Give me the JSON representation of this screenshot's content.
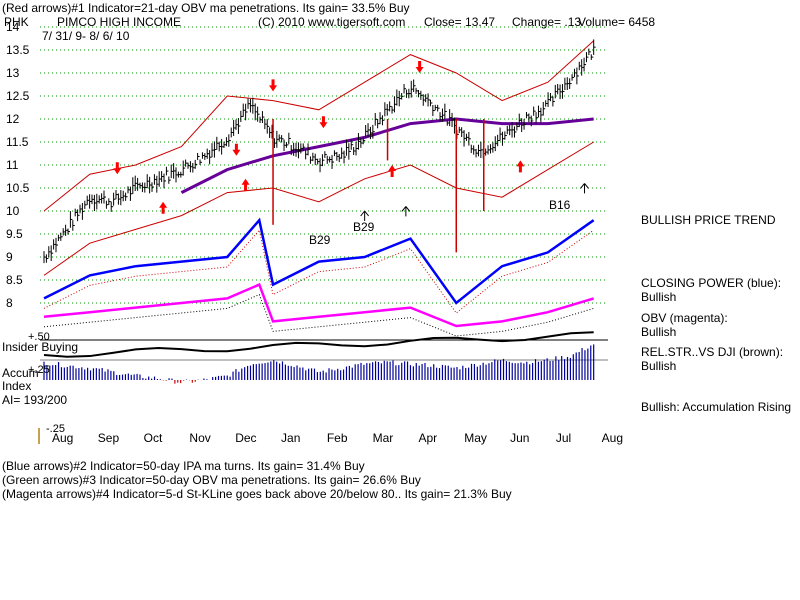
{
  "header": {
    "line1": "(Red arrows)#1 Indicator=21-day OBV ma penetrations. Its gain= 33.5% Buy",
    "ticker": "PHK",
    "company": "PIMCO HIGH INCOME",
    "copyright": "(C) 2010 www.tigersoft.com",
    "close": "Close=  13.47",
    "change": "Change= .13",
    "volume": "Volume= 6458",
    "date_range": "7/ 31/ 9-  8/ 6/ 10"
  },
  "right_panel": {
    "trend": "BULLISH PRICE TREND",
    "closing_power_label": "CLOSING POWER (blue):",
    "closing_power_value": "Bullish",
    "obv_label": "OBV (magenta):",
    "obv_value": "Bullish",
    "relstr_label": "REL.STR..VS DJI (brown):",
    "relstr_value": "Bullish",
    "accum_status": "Bullish: Accumulation Rising"
  },
  "lower_panel": {
    "plus50": "+.50",
    "insider_label": "Insider Buying",
    "plus25": "+.25",
    "accum_label_1": "Accum",
    "accum_label_2": "Index",
    "ai_label": "AI= 193/200",
    "minus25": "-.25"
  },
  "footer": {
    "line1": "(Blue arrows)#2 Indicator=50-day IPA ma turns. Its gain= 31.4% Buy",
    "line2": "(Green arrows)#3 Indicator=50-day OBV ma penetrations. Its gain= 26.6% Buy",
    "line3": "(Magenta arrows)#4 Indicator=5-d St-KLine goes back above 20/below 80.. Its gain= 21.3% Buy"
  },
  "annotations": [
    {
      "label": "B29",
      "x": "Jan"
    },
    {
      "label": "B29",
      "x": "Feb"
    },
    {
      "label": "B16",
      "x": "Jun"
    }
  ],
  "colors": {
    "price_bars": "#000000",
    "bands": "#cc0000",
    "ma": "#660099",
    "closing_power": "#0000ff",
    "obv": "#ff00ff",
    "accum_bars": "#000099",
    "relstr": "#000000",
    "arrows": "#ff0000",
    "grid": "#009900"
  },
  "chart_data": {
    "type": "line",
    "title": "PIMCO HIGH INCOME",
    "x_ticks": [
      "Aug",
      "Sep",
      "Oct",
      "Nov",
      "Dec",
      "Jan",
      "Feb",
      "Mar",
      "Apr",
      "May",
      "Jun",
      "Jul",
      "Aug"
    ],
    "y_ticks": [
      "14",
      "13.5",
      "13",
      "12.5",
      "12",
      "11.5",
      "11",
      "10.5",
      "10",
      "9.5",
      "9",
      "8.5",
      "8"
    ],
    "ylim": [
      8,
      14
    ],
    "grid": true,
    "series": [
      {
        "name": "Price",
        "x": [
          0,
          0.5,
          1,
          1.5,
          2,
          2.5,
          3,
          3.5,
          4,
          4.5,
          5,
          5.5,
          6,
          6.5,
          7,
          7.5,
          8,
          8.5,
          9,
          9.5,
          10,
          10.5,
          11,
          11.5,
          12
        ],
        "values": [
          9.0,
          9.6,
          10.3,
          10.2,
          10.5,
          10.7,
          10.9,
          11.2,
          11.6,
          12.3,
          11.6,
          11.4,
          11.1,
          11.2,
          11.6,
          12.2,
          12.7,
          12.3,
          11.8,
          11.3,
          11.6,
          12.0,
          12.3,
          12.9,
          13.5
        ]
      },
      {
        "name": "Upper band",
        "x": [
          0,
          1,
          2,
          3,
          4,
          5,
          6,
          7,
          8,
          9,
          10,
          11,
          12
        ],
        "values": [
          10.0,
          10.8,
          11.0,
          11.4,
          12.5,
          12.4,
          12.2,
          12.8,
          13.4,
          13.0,
          12.4,
          12.8,
          13.7
        ]
      },
      {
        "name": "Lower band",
        "x": [
          0,
          1,
          2,
          3,
          4,
          5,
          6,
          7,
          8,
          9,
          10,
          11,
          12
        ],
        "values": [
          8.6,
          9.3,
          9.6,
          9.9,
          10.4,
          10.5,
          10.2,
          10.7,
          11.0,
          10.5,
          10.3,
          10.9,
          11.5
        ]
      },
      {
        "name": "Moving average",
        "x": [
          3,
          4,
          5,
          6,
          7,
          8,
          9,
          10,
          11,
          12
        ],
        "values": [
          10.4,
          10.9,
          11.2,
          11.4,
          11.6,
          11.9,
          12.0,
          11.9,
          11.9,
          12.0
        ]
      },
      {
        "name": "CLOSING POWER (blue)",
        "x": [
          0,
          1,
          2,
          3,
          4,
          4.7,
          5,
          6,
          7,
          8,
          9,
          10,
          11,
          12
        ],
        "values": [
          8.1,
          8.6,
          8.8,
          8.9,
          9.0,
          9.8,
          8.4,
          8.9,
          9.0,
          9.4,
          8.0,
          8.8,
          9.1,
          9.8
        ]
      },
      {
        "name": "OBV (magenta)",
        "x": [
          0,
          1,
          2,
          3,
          4,
          4.7,
          5,
          6,
          7,
          8,
          9,
          10,
          11,
          12
        ],
        "values": [
          7.7,
          7.8,
          7.9,
          8.0,
          8.1,
          8.4,
          7.6,
          7.7,
          7.8,
          7.9,
          7.5,
          7.6,
          7.8,
          8.1
        ]
      }
    ],
    "accum_index": {
      "ylim": [
        -0.25,
        0.5
      ],
      "x": [
        0,
        0.5,
        1,
        1.5,
        2,
        2.5,
        3,
        3.5,
        4,
        4.5,
        5,
        5.5,
        6,
        6.5,
        7,
        7.5,
        8,
        8.5,
        9,
        9.5,
        10,
        10.5,
        11,
        11.5,
        12
      ],
      "values": [
        0.22,
        0.18,
        0.15,
        0.1,
        0.05,
        0.02,
        -0.03,
        0.0,
        0.05,
        0.2,
        0.25,
        0.18,
        0.1,
        0.15,
        0.2,
        0.22,
        0.2,
        0.18,
        0.15,
        0.2,
        0.25,
        0.22,
        0.25,
        0.3,
        0.45
      ]
    }
  }
}
